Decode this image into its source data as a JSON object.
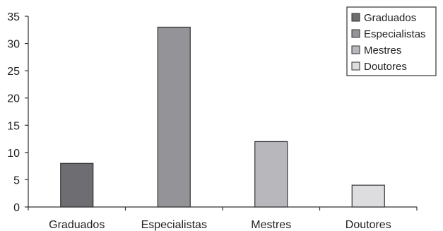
{
  "chart_data": {
    "type": "bar",
    "categories": [
      "Graduados",
      "Especialistas",
      "Mestres",
      "Doutores"
    ],
    "values": [
      8,
      33,
      12,
      4
    ],
    "colors": [
      "#6e6e72",
      "#939398",
      "#b7b7bc",
      "#dddde0"
    ],
    "ylim": [
      0,
      35
    ],
    "yticks": [
      "0",
      "5",
      "10",
      "15",
      "20",
      "25",
      "30",
      "35"
    ],
    "legend": {
      "position": "top-right",
      "entries": [
        "Graduados",
        "Especialistas",
        "Mestres",
        "Doutores"
      ]
    },
    "grid": false,
    "title": "",
    "xlabel": "",
    "ylabel": ""
  }
}
